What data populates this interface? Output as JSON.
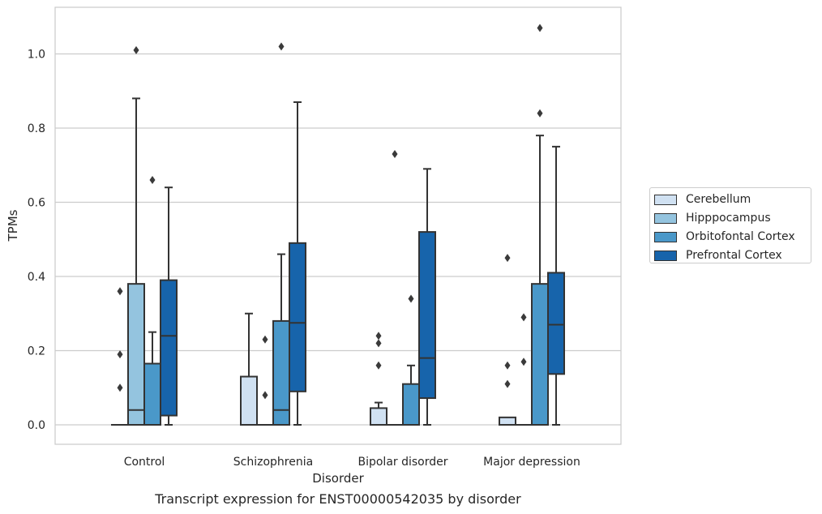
{
  "chart_data": {
    "type": "box",
    "xlabel": "Disorder",
    "ylabel": "TPMs",
    "caption": "Transcript expression for ENST00000542035 by disorder",
    "ylim": [
      -0.05,
      1.13
    ],
    "yticks": [
      0.0,
      0.2,
      0.4,
      0.6,
      0.8,
      1.0
    ],
    "ytick_labels": [
      "0.0",
      "0.2",
      "0.4",
      "0.6",
      "0.8",
      "1.0"
    ],
    "grid": true,
    "legend_position": "right-center",
    "categories": [
      "Control",
      "Schizophrenia",
      "Bipolar disorder",
      "Major depression"
    ],
    "series": [
      {
        "name": "Cerebellum",
        "color": "#d0e1f2",
        "boxes": [
          {
            "q1": 0,
            "median": 0,
            "q3": 0,
            "whisker_low": 0,
            "whisker_high": 0,
            "outliers": [
              0.1,
              0.19,
              0.36
            ]
          },
          {
            "q1": 0,
            "median": 0,
            "q3": 0.13,
            "whisker_low": 0,
            "whisker_high": 0.3,
            "outliers": []
          },
          {
            "q1": 0,
            "median": 0,
            "q3": 0.045,
            "whisker_low": 0,
            "whisker_high": 0.06,
            "outliers": [
              0.16,
              0.22,
              0.24
            ]
          },
          {
            "q1": 0,
            "median": 0,
            "q3": 0.02,
            "whisker_low": 0,
            "whisker_high": 0.02,
            "outliers": [
              0.11,
              0.16,
              0.45
            ]
          }
        ]
      },
      {
        "name": "Hipppocampus",
        "color": "#94c4df",
        "boxes": [
          {
            "q1": 0,
            "median": 0.04,
            "q3": 0.38,
            "whisker_low": 0,
            "whisker_high": 0.88,
            "outliers": [
              1.01
            ]
          },
          {
            "q1": 0,
            "median": 0,
            "q3": 0,
            "whisker_low": 0,
            "whisker_high": 0,
            "outliers": [
              0.08,
              0.23
            ]
          },
          {
            "q1": 0,
            "median": 0,
            "q3": 0,
            "whisker_low": 0,
            "whisker_high": 0,
            "outliers": [
              0.73
            ]
          },
          {
            "q1": 0,
            "median": 0,
            "q3": 0,
            "whisker_low": 0,
            "whisker_high": 0,
            "outliers": [
              0.17,
              0.29
            ]
          }
        ]
      },
      {
        "name": "Orbitofontal Cortex",
        "color": "#4a98c9",
        "boxes": [
          {
            "q1": 0,
            "median": 0,
            "q3": 0.165,
            "whisker_low": 0,
            "whisker_high": 0.25,
            "outliers": [
              0.66
            ]
          },
          {
            "q1": 0,
            "median": 0.04,
            "q3": 0.28,
            "whisker_low": 0,
            "whisker_high": 0.46,
            "outliers": [
              1.02
            ]
          },
          {
            "q1": 0,
            "median": 0,
            "q3": 0.11,
            "whisker_low": 0,
            "whisker_high": 0.16,
            "outliers": [
              0.34
            ]
          },
          {
            "q1": 0,
            "median": 0,
            "q3": 0.38,
            "whisker_low": 0,
            "whisker_high": 0.78,
            "outliers": [
              0.84,
              1.07
            ]
          }
        ]
      },
      {
        "name": "Prefrontal Cortex",
        "color": "#1764ab",
        "boxes": [
          {
            "q1": 0.025,
            "median": 0.24,
            "q3": 0.39,
            "whisker_low": 0,
            "whisker_high": 0.64,
            "outliers": []
          },
          {
            "q1": 0.09,
            "median": 0.275,
            "q3": 0.49,
            "whisker_low": 0,
            "whisker_high": 0.87,
            "outliers": []
          },
          {
            "q1": 0.072,
            "median": 0.18,
            "q3": 0.52,
            "whisker_low": 0,
            "whisker_high": 0.69,
            "outliers": []
          },
          {
            "q1": 0.137,
            "median": 0.27,
            "q3": 0.41,
            "whisker_low": 0,
            "whisker_high": 0.75,
            "outliers": []
          }
        ]
      }
    ]
  }
}
